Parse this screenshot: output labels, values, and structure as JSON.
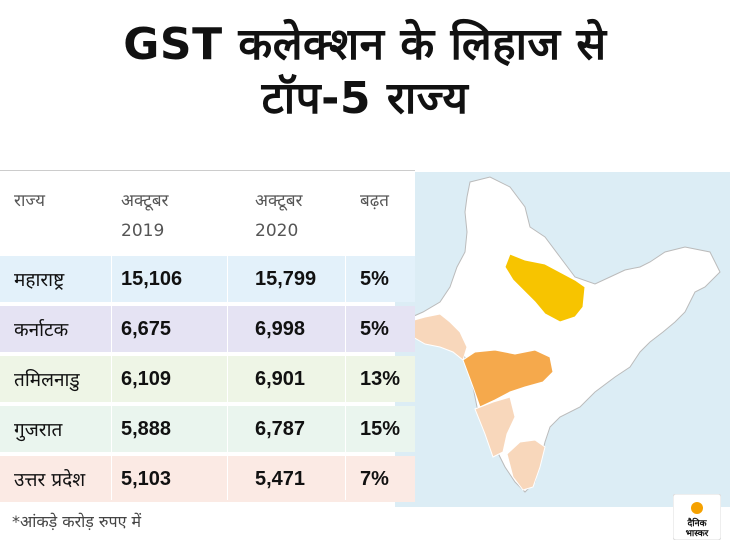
{
  "title_line1": "GST कलेक्शन के लिहाज से",
  "title_line2": "टॉप-5 राज्य",
  "table": {
    "headers": [
      "राज्य",
      "अक्टूबर\n2019",
      "अक्टूबर\n2020",
      "बढ़त"
    ],
    "rows": [
      {
        "state": "महाराष्ट्र",
        "oct2019": "15,106",
        "oct2020": "15,799",
        "growth": "5%",
        "bg": "#e3f1fa"
      },
      {
        "state": "कर्नाटक",
        "oct2019": "6,675",
        "oct2020": "6,998",
        "growth": "5%",
        "bg": "#e5e3f3"
      },
      {
        "state": "तमिलनाडु",
        "oct2019": "6,109",
        "oct2020": "6,901",
        "growth": "13%",
        "bg": "#eef5e6"
      },
      {
        "state": "गुजरात",
        "oct2019": "5,888",
        "oct2020": "6,787",
        "growth": "15%",
        "bg": "#eaf5ee"
      },
      {
        "state": "उत्तर प्रदेश",
        "oct2019": "5,103",
        "oct2020": "5,471",
        "growth": "7%",
        "bg": "#fbeae4"
      }
    ]
  },
  "footnote": "*आंकड़े करोड़ रुपए में",
  "logo": {
    "line1": "दैनिक",
    "line2": "भास्कर",
    "accent": "#f5a100"
  },
  "map_colors": {
    "uttar_pradesh": "#f7c400",
    "maharashtra": "#f5a94c",
    "gujarat_tn_karnataka": "#f8d7bb",
    "other": "#ffffff",
    "sea": "#dcedf5"
  }
}
